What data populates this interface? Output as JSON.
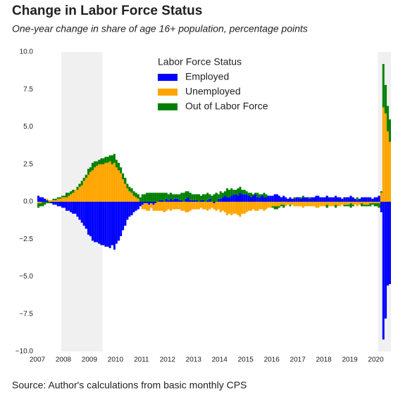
{
  "chart_data": {
    "type": "stacked_bar",
    "title": "Change in Labor Force Status",
    "subtitle": "One-year change in share of age 16+ population, percentage points",
    "source": "Source: Author's calculations from basic monthly CPS",
    "legend_title": "Labor Force Status",
    "legend_position": "upper center",
    "grid": false,
    "shaded_color": "#f0f0f0",
    "shaded_periods": [
      [
        2007.92,
        2009.5
      ],
      [
        2020.08,
        2020.58
      ]
    ],
    "xlim": [
      2007,
      2020.58
    ],
    "xticks": [
      2007,
      2008,
      2009,
      2010,
      2011,
      2012,
      2013,
      2014,
      2015,
      2016,
      2017,
      2018,
      2019,
      2020
    ],
    "ylim": [
      -10,
      10
    ],
    "yticks": [
      {
        "value": -10,
        "label": "−10.0"
      },
      {
        "value": -7.5,
        "label": "−7.5"
      },
      {
        "value": -5,
        "label": "−5.0"
      },
      {
        "value": -2.5,
        "label": "−2.5"
      },
      {
        "value": 0,
        "label": "0.0"
      },
      {
        "value": 2.5,
        "label": "2.5"
      },
      {
        "value": 5,
        "label": "5.0"
      },
      {
        "value": 7.5,
        "label": "7.5"
      },
      {
        "value": 10,
        "label": "10.0"
      }
    ],
    "x": [
      2007,
      2007.08,
      2007.17,
      2007.25,
      2007.33,
      2007.42,
      2007.5,
      2007.58,
      2007.67,
      2007.75,
      2007.83,
      2007.92,
      2008,
      2008.08,
      2008.17,
      2008.25,
      2008.33,
      2008.42,
      2008.5,
      2008.58,
      2008.67,
      2008.75,
      2008.83,
      2008.92,
      2009,
      2009.08,
      2009.17,
      2009.25,
      2009.33,
      2009.42,
      2009.5,
      2009.58,
      2009.67,
      2009.75,
      2009.83,
      2009.92,
      2010,
      2010.08,
      2010.17,
      2010.25,
      2010.33,
      2010.42,
      2010.5,
      2010.58,
      2010.67,
      2010.75,
      2010.83,
      2010.92,
      2011,
      2011.08,
      2011.17,
      2011.25,
      2011.33,
      2011.42,
      2011.5,
      2011.58,
      2011.67,
      2011.75,
      2011.83,
      2011.92,
      2012,
      2012.08,
      2012.17,
      2012.25,
      2012.33,
      2012.42,
      2012.5,
      2012.58,
      2012.67,
      2012.75,
      2012.83,
      2012.92,
      2013,
      2013.08,
      2013.17,
      2013.25,
      2013.33,
      2013.42,
      2013.5,
      2013.58,
      2013.67,
      2013.75,
      2013.83,
      2013.92,
      2014,
      2014.08,
      2014.17,
      2014.25,
      2014.33,
      2014.42,
      2014.5,
      2014.58,
      2014.67,
      2014.75,
      2014.83,
      2014.92,
      2015,
      2015.08,
      2015.17,
      2015.25,
      2015.33,
      2015.42,
      2015.5,
      2015.58,
      2015.67,
      2015.75,
      2015.83,
      2015.92,
      2016,
      2016.08,
      2016.17,
      2016.25,
      2016.33,
      2016.42,
      2016.5,
      2016.58,
      2016.67,
      2016.75,
      2016.83,
      2016.92,
      2017,
      2017.08,
      2017.17,
      2017.25,
      2017.33,
      2017.42,
      2017.5,
      2017.58,
      2017.67,
      2017.75,
      2017.83,
      2017.92,
      2018,
      2018.08,
      2018.17,
      2018.25,
      2018.33,
      2018.42,
      2018.5,
      2018.58,
      2018.67,
      2018.75,
      2018.83,
      2018.92,
      2019,
      2019.08,
      2019.17,
      2019.25,
      2019.33,
      2019.42,
      2019.5,
      2019.58,
      2019.67,
      2019.75,
      2019.83,
      2019.92,
      2020,
      2020.08,
      2020.17,
      2020.25,
      2020.33,
      2020.42,
      2020.5
    ],
    "series": [
      {
        "name": "Employed",
        "color": "#0000ff",
        "values": [
          0.4,
          0.3,
          0.3,
          0.2,
          0.1,
          0.0,
          -0.1,
          -0.2,
          -0.2,
          -0.3,
          -0.3,
          -0.4,
          -0.4,
          -0.6,
          -0.6,
          -0.7,
          -0.8,
          -0.8,
          -1.0,
          -1.2,
          -1.4,
          -1.6,
          -1.8,
          -2.2,
          -2.3,
          -2.6,
          -2.7,
          -2.7,
          -2.8,
          -2.9,
          -2.9,
          -3.0,
          -3.0,
          -3.1,
          -2.9,
          -3.2,
          -2.8,
          -2.6,
          -2.3,
          -1.9,
          -1.6,
          -1.2,
          -1.0,
          -0.9,
          -0.7,
          -0.6,
          -0.5,
          -0.3,
          -0.2,
          -0.1,
          -0.1,
          -0.2,
          -0.1,
          -0.2,
          -0.1,
          0.0,
          0.1,
          0.1,
          0.0,
          0.2,
          0.1,
          0.2,
          0.1,
          0.2,
          0.2,
          0.1,
          0.1,
          0.0,
          0.2,
          0.3,
          0.1,
          0.1,
          0.1,
          0.1,
          0.0,
          0.1,
          0.1,
          0.0,
          0.1,
          0.2,
          0.0,
          -0.1,
          0.0,
          0.2,
          0.2,
          0.3,
          0.4,
          0.3,
          0.3,
          0.4,
          0.5,
          0.5,
          0.4,
          0.6,
          0.5,
          0.5,
          0.5,
          0.4,
          0.3,
          0.4,
          0.5,
          0.3,
          0.3,
          0.4,
          0.3,
          0.3,
          0.4,
          0.4,
          0.4,
          0.5,
          0.5,
          0.4,
          0.3,
          0.4,
          0.3,
          0.2,
          0.3,
          0.2,
          0.2,
          0.3,
          0.3,
          0.2,
          0.3,
          0.3,
          0.3,
          0.2,
          0.3,
          0.3,
          0.4,
          0.4,
          0.3,
          0.3,
          0.3,
          0.4,
          0.3,
          0.3,
          0.3,
          0.4,
          0.3,
          0.3,
          0.2,
          0.3,
          0.3,
          0.3,
          0.4,
          0.3,
          0.2,
          0.1,
          0.2,
          0.3,
          0.3,
          0.3,
          0.3,
          0.3,
          0.2,
          0.3,
          0.3,
          0.4,
          -0.7,
          -9.2,
          -7.8,
          -5.6,
          -5.5
        ]
      },
      {
        "name": "Unemployed",
        "color": "#ffa500",
        "values": [
          -0.1,
          -0.1,
          0.0,
          0.0,
          0.1,
          0.1,
          0.1,
          0.1,
          0.1,
          0.2,
          0.2,
          0.3,
          0.3,
          0.3,
          0.4,
          0.5,
          0.6,
          0.8,
          0.8,
          1.0,
          1.1,
          1.4,
          1.6,
          1.8,
          2.0,
          2.1,
          2.3,
          2.4,
          2.5,
          2.5,
          2.5,
          2.6,
          2.6,
          2.7,
          2.5,
          2.6,
          2.3,
          2.1,
          1.9,
          1.5,
          1.2,
          0.9,
          0.7,
          0.6,
          0.4,
          0.3,
          0.2,
          0.0,
          -0.3,
          -0.4,
          -0.5,
          -0.4,
          -0.3,
          -0.4,
          -0.5,
          -0.6,
          -0.6,
          -0.6,
          -0.7,
          -0.6,
          -0.5,
          -0.6,
          -0.5,
          -0.5,
          -0.5,
          -0.5,
          -0.6,
          -0.6,
          -0.7,
          -0.7,
          -0.6,
          -0.5,
          -0.5,
          -0.5,
          -0.5,
          -0.4,
          -0.5,
          -0.5,
          -0.6,
          -0.5,
          -0.4,
          -0.4,
          -0.6,
          -0.5,
          -0.7,
          -0.6,
          -0.7,
          -0.9,
          -0.8,
          -0.9,
          -0.8,
          -0.8,
          -0.9,
          -1.0,
          -0.8,
          -0.8,
          -0.7,
          -0.6,
          -0.6,
          -0.5,
          -0.6,
          -0.6,
          -0.5,
          -0.5,
          -0.6,
          -0.5,
          -0.4,
          -0.4,
          -0.3,
          -0.3,
          -0.3,
          -0.3,
          -0.2,
          -0.2,
          -0.3,
          -0.2,
          -0.2,
          -0.2,
          -0.3,
          -0.3,
          -0.3,
          -0.3,
          -0.4,
          -0.3,
          -0.3,
          -0.3,
          -0.3,
          -0.3,
          -0.4,
          -0.4,
          -0.3,
          -0.3,
          -0.3,
          -0.2,
          -0.3,
          -0.3,
          -0.3,
          -0.2,
          -0.3,
          -0.3,
          -0.2,
          -0.2,
          -0.2,
          -0.2,
          -0.1,
          -0.2,
          -0.2,
          -0.3,
          -0.2,
          -0.1,
          -0.2,
          -0.2,
          -0.2,
          -0.1,
          -0.1,
          -0.1,
          -0.1,
          -0.1,
          0.6,
          6.3,
          5.9,
          4.7,
          4.0
        ]
      },
      {
        "name": "Out of Labor Force",
        "color": "#008000",
        "values": [
          -0.3,
          -0.2,
          -0.3,
          -0.2,
          -0.1,
          -0.1,
          0.0,
          0.1,
          0.1,
          0.1,
          0.1,
          0.1,
          0.1,
          0.3,
          0.2,
          0.2,
          0.2,
          0.0,
          0.2,
          0.2,
          0.3,
          0.2,
          0.2,
          0.4,
          0.3,
          0.5,
          0.4,
          0.3,
          0.3,
          0.4,
          0.4,
          0.4,
          0.4,
          0.4,
          0.6,
          0.6,
          0.5,
          0.5,
          0.4,
          0.4,
          0.4,
          0.3,
          0.3,
          0.3,
          0.3,
          0.3,
          0.3,
          0.3,
          0.5,
          0.5,
          0.6,
          0.6,
          0.6,
          0.6,
          0.6,
          0.6,
          0.5,
          0.5,
          0.6,
          0.4,
          0.4,
          0.4,
          0.4,
          0.3,
          0.3,
          0.4,
          0.5,
          0.6,
          0.5,
          0.4,
          0.5,
          0.4,
          0.4,
          0.4,
          0.5,
          0.3,
          0.4,
          0.5,
          0.5,
          0.3,
          0.4,
          0.5,
          0.6,
          0.3,
          0.5,
          0.3,
          0.3,
          0.6,
          0.5,
          0.5,
          0.3,
          0.3,
          0.5,
          0.4,
          0.3,
          0.3,
          0.2,
          0.2,
          0.3,
          0.1,
          0.1,
          0.3,
          0.2,
          0.1,
          0.3,
          0.2,
          0.0,
          0.0,
          -0.1,
          -0.2,
          -0.2,
          -0.1,
          -0.1,
          -0.2,
          0.0,
          0.0,
          -0.1,
          0.0,
          0.1,
          0.0,
          0.0,
          0.1,
          0.1,
          0.0,
          0.0,
          0.1,
          0.0,
          0.0,
          0.0,
          0.0,
          0.0,
          0.0,
          0.0,
          -0.2,
          0.0,
          0.0,
          0.0,
          -0.2,
          0.0,
          0.0,
          0.0,
          -0.1,
          -0.1,
          -0.1,
          -0.3,
          -0.1,
          0.0,
          0.2,
          0.0,
          -0.2,
          -0.1,
          -0.1,
          -0.1,
          -0.2,
          -0.1,
          -0.2,
          -0.2,
          -0.3,
          0.1,
          2.9,
          1.9,
          1.7,
          1.5
        ]
      }
    ]
  }
}
